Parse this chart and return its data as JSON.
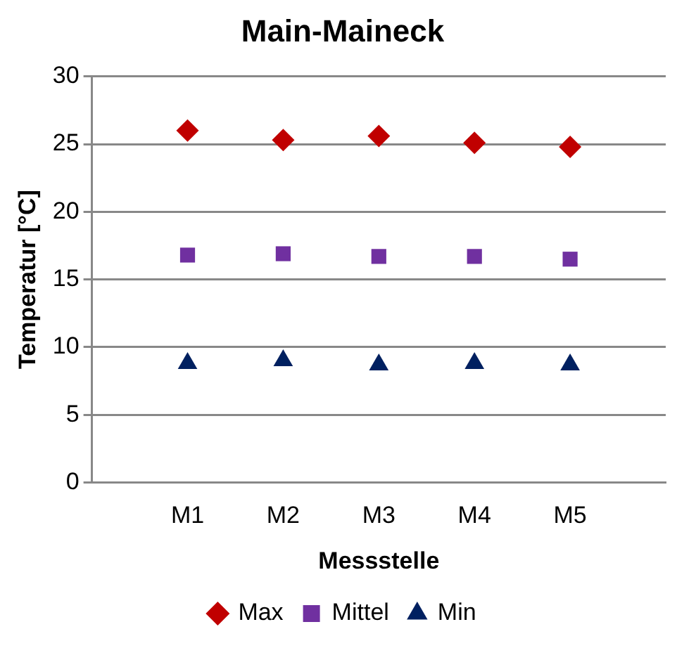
{
  "chart_data": {
    "type": "scatter",
    "title": "Main-Maineck",
    "xlabel": "Messstelle",
    "ylabel": "Temperatur [°C]",
    "categories": [
      null,
      "M1",
      "M2",
      "M3",
      "M4",
      "M5",
      null
    ],
    "series": [
      {
        "name": "Max",
        "color": "#c00000",
        "marker": "diamond",
        "values": [
          null,
          26.0,
          25.3,
          25.6,
          25.1,
          24.8,
          null
        ]
      },
      {
        "name": "Mittel",
        "color": "#7030a0",
        "marker": "square",
        "values": [
          null,
          16.8,
          16.9,
          16.7,
          16.7,
          16.5,
          null
        ]
      },
      {
        "name": "Min",
        "color": "#002060",
        "marker": "triangle",
        "values": [
          null,
          8.8,
          9.0,
          8.7,
          8.8,
          8.7,
          null
        ]
      }
    ],
    "ylim": [
      0,
      30
    ],
    "yticks": [
      0,
      5,
      10,
      15,
      20,
      25,
      30
    ],
    "grid": "y",
    "legend": "bottom"
  }
}
